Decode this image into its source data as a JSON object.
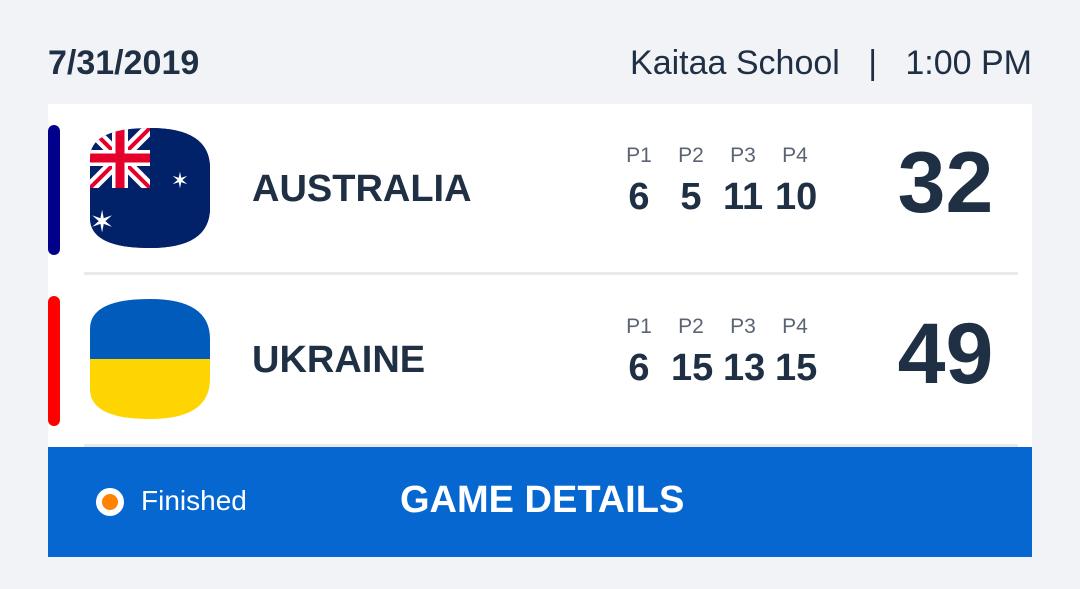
{
  "header": {
    "date": "7/31/2019",
    "venue": "Kaitaa School",
    "separator": "|",
    "time": "1:00 PM"
  },
  "period_labels": [
    "P1",
    "P2",
    "P3",
    "P4"
  ],
  "teams": [
    {
      "name": "AUSTRALIA",
      "accent": "#00008b",
      "flag": "australia-flag",
      "periods": [
        "6",
        "5",
        "11",
        "10"
      ],
      "score": "32"
    },
    {
      "name": "UKRAINE",
      "accent": "#ff0000",
      "flag": "ukraine-flag",
      "periods": [
        "6",
        "15",
        "13",
        "15"
      ],
      "score": "49"
    }
  ],
  "footer": {
    "status": "Finished",
    "status_color": "#ff8200",
    "details_label": "GAME DETAILS",
    "color": "#0767d0"
  }
}
